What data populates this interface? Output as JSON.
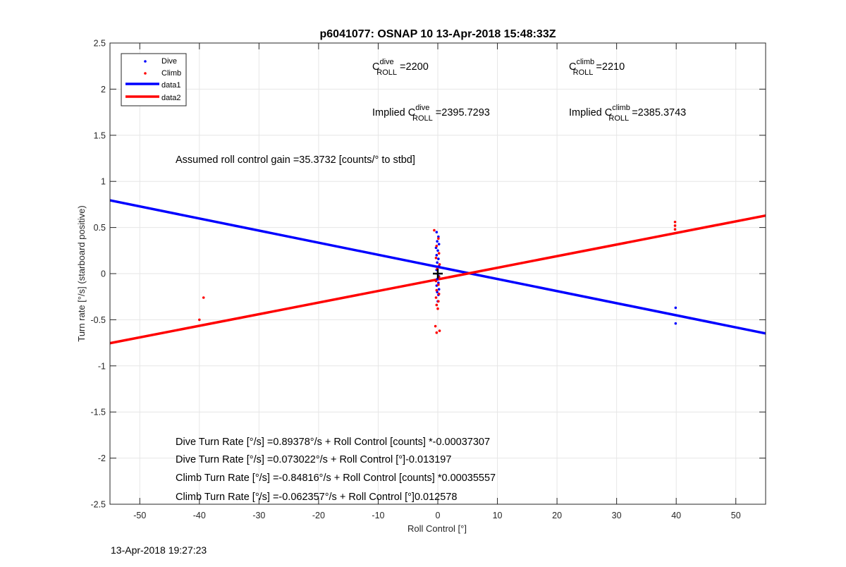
{
  "chart_data": {
    "type": "scatter",
    "title": "p6041077: OSNAP 10 13-Apr-2018 15:48:33Z",
    "xlabel": "Roll Control [°]",
    "ylabel": "Turn rate [°/s] (starboard positive)",
    "xlim": [
      -55,
      55
    ],
    "ylim": [
      -2.5,
      2.5
    ],
    "xticks": [
      -50,
      -40,
      -30,
      -20,
      -10,
      0,
      10,
      20,
      30,
      40,
      50
    ],
    "yticks": [
      -2.5,
      -2,
      -1.5,
      -1,
      -0.5,
      0,
      0.5,
      1,
      1.5,
      2,
      2.5
    ],
    "grid": true,
    "legend_position": "top-left",
    "series": [
      {
        "name": "Dive",
        "kind": "points",
        "color": "#0000ff",
        "points": [
          [
            -0.2,
            0.45
          ],
          [
            0.1,
            0.4
          ],
          [
            -0.1,
            0.35
          ],
          [
            0.2,
            0.32
          ],
          [
            -0.3,
            0.28
          ],
          [
            0.0,
            0.25
          ],
          [
            -0.2,
            0.2
          ],
          [
            0.1,
            0.16
          ],
          [
            -0.1,
            0.12
          ],
          [
            0.2,
            0.08
          ],
          [
            -0.2,
            0.04
          ],
          [
            0.0,
            0.0
          ],
          [
            0.2,
            -0.03
          ],
          [
            -0.1,
            -0.06
          ],
          [
            0.1,
            -0.1
          ],
          [
            -0.2,
            -0.13
          ],
          [
            0.2,
            -0.17
          ],
          [
            -0.1,
            -0.2
          ],
          [
            0.1,
            -0.23
          ],
          [
            0.0,
            -0.3
          ],
          [
            39.9,
            -0.37
          ],
          [
            39.9,
            -0.54
          ]
        ]
      },
      {
        "name": "Climb",
        "kind": "points",
        "color": "#ff0000",
        "points": [
          [
            -0.6,
            0.47
          ],
          [
            0.1,
            0.38
          ],
          [
            -0.2,
            0.3
          ],
          [
            0.2,
            0.22
          ],
          [
            -0.3,
            0.17
          ],
          [
            0.3,
            0.1
          ],
          [
            -0.1,
            0.05
          ],
          [
            0.2,
            -0.04
          ],
          [
            -0.3,
            -0.08
          ],
          [
            0.1,
            -0.12
          ],
          [
            -0.2,
            -0.18
          ],
          [
            0.2,
            -0.22
          ],
          [
            -0.3,
            -0.26
          ],
          [
            0.1,
            -0.3
          ],
          [
            -0.2,
            -0.34
          ],
          [
            0.0,
            -0.38
          ],
          [
            -0.4,
            -0.57
          ],
          [
            -0.2,
            -0.64
          ],
          [
            0.3,
            -0.62
          ],
          [
            39.8,
            0.56
          ],
          [
            39.8,
            0.52
          ],
          [
            39.8,
            0.48
          ],
          [
            -39.3,
            -0.26
          ],
          [
            -40.0,
            -0.5
          ]
        ]
      },
      {
        "name": "data1",
        "kind": "line",
        "color": "#0000ff",
        "x": [
          -55,
          55
        ],
        "y": [
          0.7944,
          -0.6485
        ]
      },
      {
        "name": "data2",
        "kind": "line",
        "color": "#ff0000",
        "x": [
          -55,
          55
        ],
        "y": [
          -0.7541,
          0.6295
        ]
      }
    ],
    "marker": {
      "x": 0,
      "y": 0,
      "symbol": "+"
    },
    "annotations": [
      {
        "id": "croll_dive",
        "prefix": "C",
        "sup": "dive",
        "sub": "ROLL",
        "suffix": " =2200"
      },
      {
        "id": "croll_climb",
        "prefix": "C",
        "sup": "climb",
        "sub": "ROLL",
        "suffix": " =2210"
      },
      {
        "id": "implied_dive",
        "prefix": "Implied C",
        "sup": "dive",
        "sub": "ROLL",
        "suffix": " =2395.7293"
      },
      {
        "id": "implied_climb",
        "prefix": "Implied C",
        "sup": "climb",
        "sub": "ROLL",
        "suffix": " =2385.3743"
      }
    ],
    "gain_text": "Assumed roll control gain =35.3732 [counts/° to stbd]",
    "fit_lines_text": [
      "Dive Turn Rate [°/s] =0.89378°/s + Roll Control [counts] *-0.00037307",
      "Dive Turn Rate [°/s] =0.073022°/s + Roll Control [°]-0.013197",
      "Climb Turn Rate [°/s] =-0.84816°/s + Roll Control [counts] *0.00035557",
      "Climb Turn Rate [°/s] =-0.062357°/s + Roll Control [°]0.012578"
    ]
  },
  "footer_timestamp": "13-Apr-2018 19:27:23"
}
